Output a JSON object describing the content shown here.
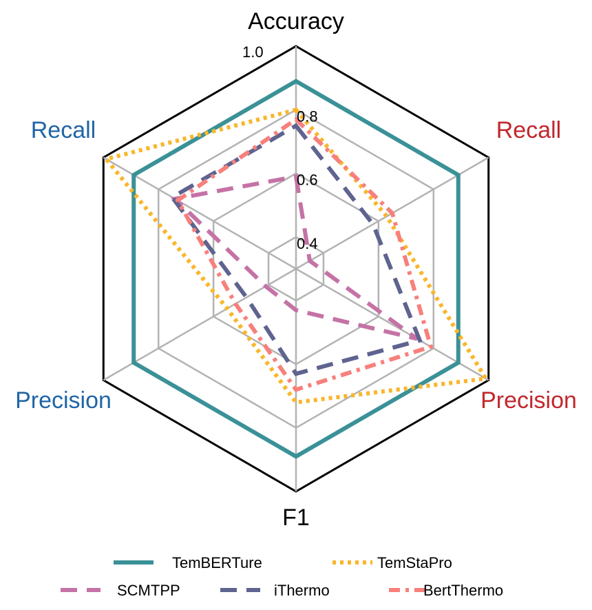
{
  "chart_data": {
    "type": "radar",
    "axes": [
      {
        "label": "Accuracy",
        "color": "#000000"
      },
      {
        "label": "Recall",
        "color": "#c1272d"
      },
      {
        "label": "Precision",
        "color": "#c1272d"
      },
      {
        "label": "F1",
        "color": "#000000"
      },
      {
        "label": "Precision",
        "color": "#1f65a6"
      },
      {
        "label": "Recall",
        "color": "#1f65a6"
      }
    ],
    "rlim": [
      0.3,
      1.0
    ],
    "ticks": [
      {
        "value": 0.4,
        "label": "0.4"
      },
      {
        "value": 0.6,
        "label": "0.6"
      },
      {
        "value": 0.8,
        "label": "0.8"
      },
      {
        "value": 1.0,
        "label": "1.0"
      }
    ],
    "grid": true,
    "legend_position": "bottom",
    "series": [
      {
        "name": "TemBERTure",
        "color": "#3a9197",
        "dash": "solid",
        "values": [
          0.89,
          0.89,
          0.89,
          0.89,
          0.89,
          0.89
        ]
      },
      {
        "name": "TemStaPro",
        "color": "#f9b62b",
        "dash": "dot",
        "values": [
          0.8,
          0.63,
          0.99,
          0.72,
          0.55,
          0.99
        ]
      },
      {
        "name": "SCMTPP",
        "color": "#c572a6",
        "dash": "dash",
        "values": [
          0.59,
          0.35,
          0.74,
          0.43,
          0.41,
          0.74
        ]
      },
      {
        "name": "iThermo",
        "color": "#5e638f",
        "dash": "dash",
        "values": [
          0.75,
          0.58,
          0.75,
          0.63,
          0.48,
          0.75
        ]
      },
      {
        "name": "BertThermo",
        "color": "#f7807c",
        "dash": "dashdot",
        "values": [
          0.77,
          0.65,
          0.79,
          0.68,
          0.52,
          0.73
        ]
      }
    ]
  }
}
